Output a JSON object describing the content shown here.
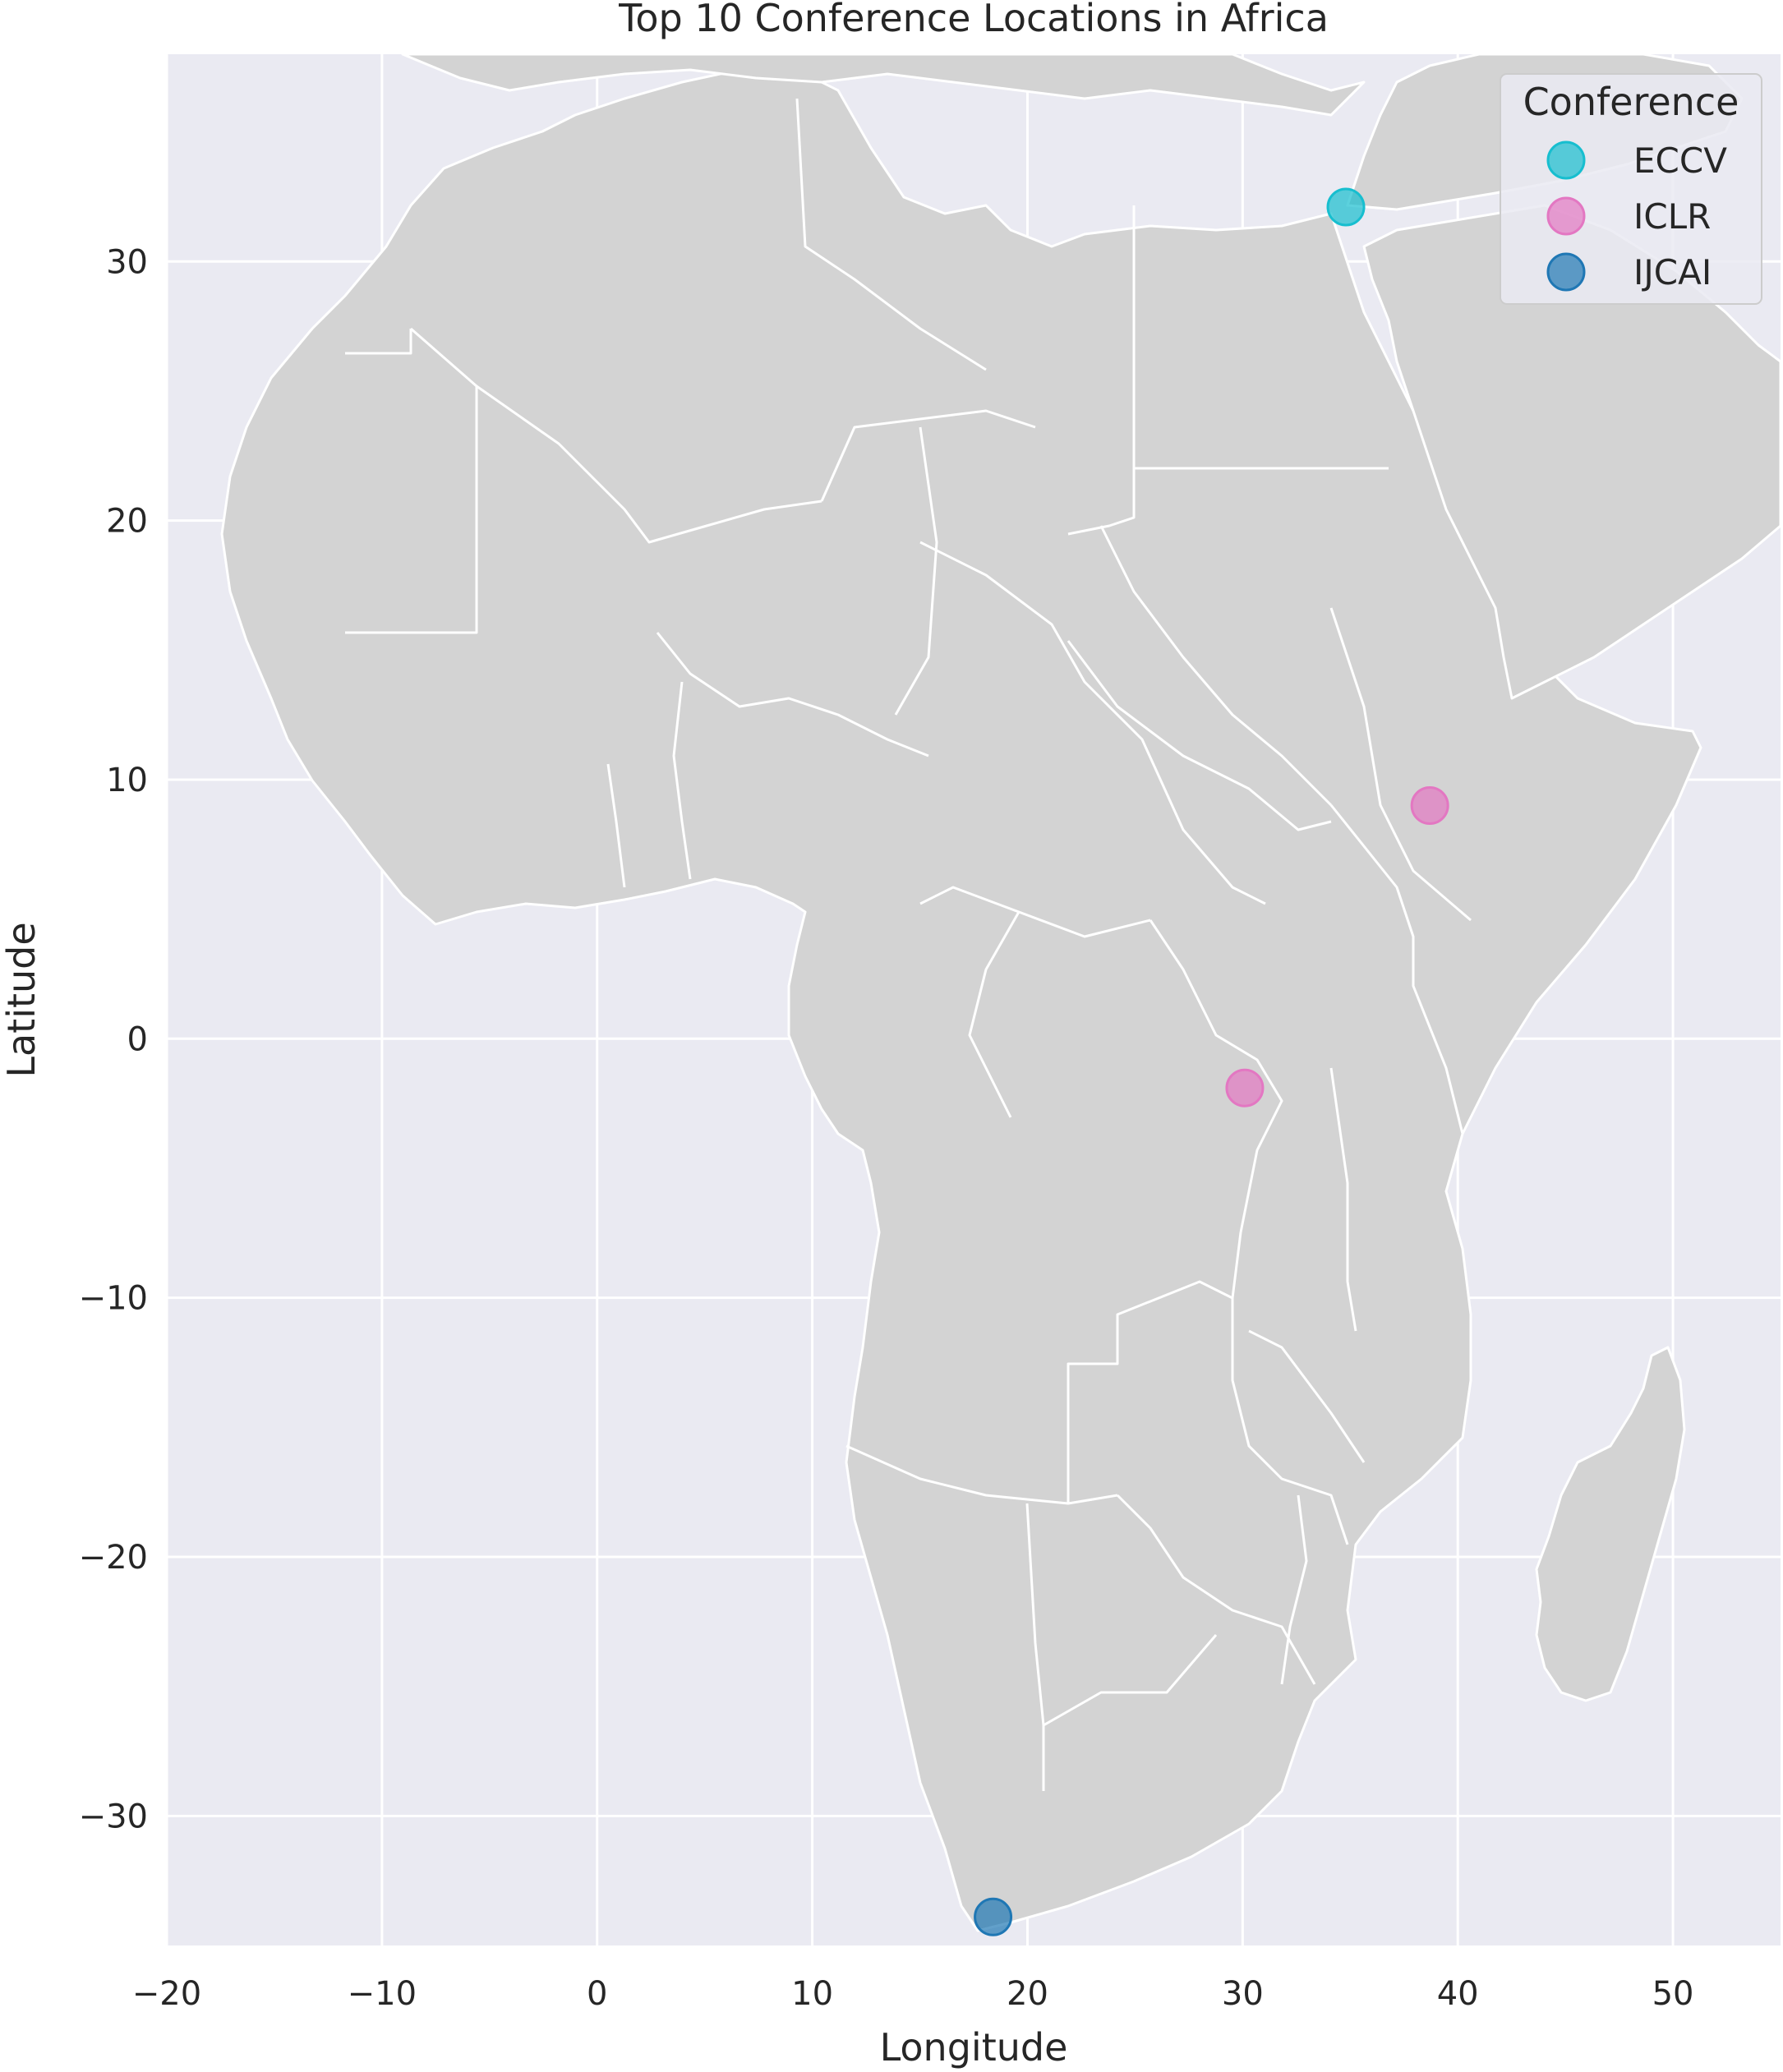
{
  "chart_data": {
    "type": "scatter",
    "title": "Top 10 Conference Locations in Africa",
    "xlabel": "Longitude",
    "ylabel": "Latitude",
    "xlim": [
      -20,
      55
    ],
    "ylim": [
      -35,
      38
    ],
    "xticks": [
      -20,
      -10,
      0,
      10,
      20,
      30,
      40,
      50
    ],
    "yticks": [
      -30,
      -20,
      -10,
      0,
      10,
      20,
      30
    ],
    "xtick_labels": [
      "−20",
      "−10",
      "0",
      "10",
      "20",
      "30",
      "40",
      "50"
    ],
    "ytick_labels": [
      "−30",
      "−20",
      "−10",
      "0",
      "10",
      "20",
      "30"
    ],
    "grid": true,
    "background": "#eaeaf2",
    "land_color": "#d3d3d3",
    "legend": {
      "title": "Conference",
      "placement": "top-right",
      "entries": [
        {
          "name": "ECCV",
          "color": "#17becf"
        },
        {
          "name": "ICLR",
          "color": "#e377c2"
        },
        {
          "name": "IJCAI",
          "color": "#1f77b4"
        }
      ]
    },
    "points": [
      {
        "series": "ECCV",
        "lon": 34.8,
        "lat": 32.1
      },
      {
        "series": "ICLR",
        "lon": 38.7,
        "lat": 9.0
      },
      {
        "series": "ICLR",
        "lon": 30.1,
        "lat": -1.9
      },
      {
        "series": "IJCAI",
        "lon": 18.4,
        "lat": -33.9
      }
    ]
  }
}
